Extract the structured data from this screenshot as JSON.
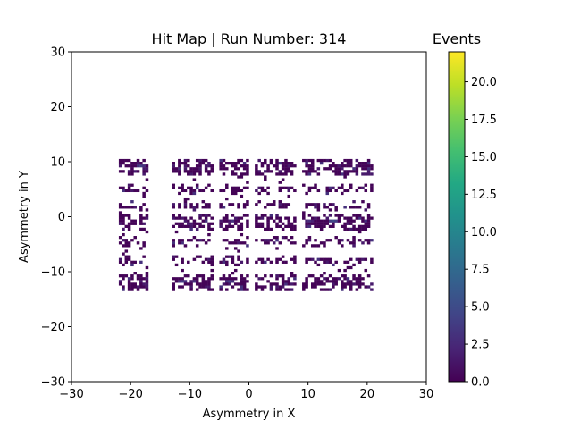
{
  "chart_data": {
    "type": "heatmap",
    "title": "Hit Map | Run Number: 314",
    "xlabel": "Asymmetry in X",
    "ylabel": "Asymmetry in Y",
    "xlim": [
      -30,
      30
    ],
    "ylim": [
      -30,
      30
    ],
    "xticks": [
      -30,
      -20,
      -10,
      0,
      10,
      20,
      30
    ],
    "yticks": [
      -30,
      -20,
      -10,
      0,
      10,
      20,
      30
    ],
    "bin_size": 0.5,
    "grid": false,
    "colormap": "viridis",
    "colorbar": {
      "label": "Events",
      "range": [
        0,
        22
      ],
      "ticks": [
        "0.0",
        "2.5",
        "5.0",
        "7.5",
        "10.0",
        "12.5",
        "15.0",
        "17.5",
        "20.0"
      ]
    },
    "rows": [
      {
        "y": 9,
        "label": "row-y-9"
      },
      {
        "y": 5,
        "label": "row-y-5"
      },
      {
        "y": 2,
        "label": "row-y-2"
      },
      {
        "y": -1,
        "label": "row-y-minus-1"
      },
      {
        "y": -4.5,
        "label": "row-y-minus-4-5"
      },
      {
        "y": -8,
        "label": "row-y-minus-8"
      },
      {
        "y": -12,
        "label": "row-y-minus-12"
      }
    ],
    "columns": [
      {
        "x_min": -22,
        "x_max": -17,
        "label": "col-left"
      },
      {
        "x_min": -13,
        "x_max": -6,
        "label": "col-mid-left"
      },
      {
        "x_min": -5,
        "x_max": 0,
        "label": "col-center-left"
      },
      {
        "x_min": 1,
        "x_max": 8,
        "label": "col-center-right"
      },
      {
        "x_min": 9,
        "x_max": 21,
        "label": "col-right"
      }
    ],
    "hotspots": [
      {
        "x": -18.5,
        "y": 9,
        "value": 4
      },
      {
        "x": -11.5,
        "y": -12,
        "value": 4
      },
      {
        "x": -3.5,
        "y": -12,
        "value": 4
      },
      {
        "x": 14,
        "y": -1,
        "value": 5
      },
      {
        "x": 10,
        "y": -1,
        "value": 3
      }
    ]
  }
}
